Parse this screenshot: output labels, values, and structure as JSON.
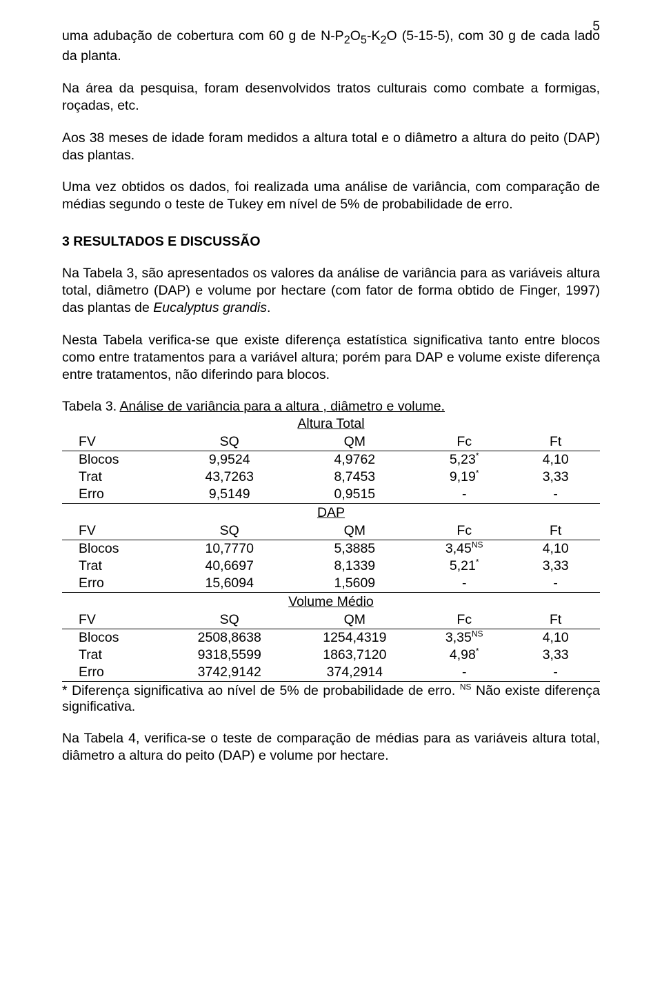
{
  "page_number": "5",
  "paragraphs": {
    "p1a": "uma adubação de cobertura com 60 g de N-P",
    "p1b": "O",
    "p1c": "-K",
    "p1d": "O (5-15-5), com 30 g de cada lado da planta.",
    "sub_2a": "2",
    "sub_5": "5",
    "sub_2b": "2",
    "p2": "Na área da pesquisa, foram desenvolvidos tratos culturais como combate a formigas, roçadas, etc.",
    "p3": "Aos 38 meses de idade foram medidos a altura total e o diâmetro a altura do peito (DAP) das plantas.",
    "p4": "Uma vez obtidos os dados, foi realizada uma análise de variância, com comparação de médias segundo o teste de Tukey em nível de 5% de probabilidade de erro.",
    "heading": "3 RESULTADOS E DISCUSSÃO",
    "p5a": "Na Tabela 3, são apresentados os valores da análise de variância para as variáveis altura total, diâmetro (DAP) e volume por hectare (com fator de forma obtido de Finger, 1997) das plantas de ",
    "p5b": "Eucalyptus grandis",
    "p5c": ".",
    "p6": "Nesta Tabela verifica-se que existe diferença estatística significativa tanto entre blocos como entre tratamentos para a variável altura; porém para DAP e volume existe diferença entre tratamentos, não diferindo  para blocos.",
    "caption_plain": "Tabela 3. ",
    "caption_underline": "Análise de variância para a altura , diâmetro e volume.",
    "p7": "Na Tabela 4, verifica-se o teste de comparação de médias para as variáveis altura total, diâmetro a altura do peito (DAP) e volume por hectare."
  },
  "table": {
    "headers": {
      "fv": "FV",
      "sq": "SQ",
      "qm": "QM",
      "fc": "Fc",
      "ft": "Ft"
    },
    "sections": [
      {
        "title": "Altura Total",
        "rows": [
          {
            "fv": "Blocos",
            "sq": "9,9524",
            "qm": "4,9762",
            "fc": "5,23",
            "fc_sup": "*",
            "ft": "4,10"
          },
          {
            "fv": "Trat",
            "sq": "43,7263",
            "qm": "8,7453",
            "fc": "9,19",
            "fc_sup": "*",
            "ft": "3,33"
          },
          {
            "fv": "Erro",
            "sq": "9,5149",
            "qm": "0,9515",
            "fc": "-",
            "fc_sup": "",
            "ft": "-"
          }
        ]
      },
      {
        "title": "DAP",
        "rows": [
          {
            "fv": "Blocos",
            "sq": "10,7770",
            "qm": "5,3885",
            "fc": "3,45",
            "fc_sup": "NS",
            "ft": "4,10"
          },
          {
            "fv": "Trat",
            "sq": "40,6697",
            "qm": "8,1339",
            "fc": "5,21",
            "fc_sup": "*",
            "ft": "3,33"
          },
          {
            "fv": "Erro",
            "sq": "15,6094",
            "qm": "1,5609",
            "fc": "-",
            "fc_sup": "",
            "ft": "-"
          }
        ]
      },
      {
        "title": "Volume Médio",
        "rows": [
          {
            "fv": "Blocos",
            "sq": "2508,8638",
            "qm": "1254,4319",
            "fc": "3,35",
            "fc_sup": "NS",
            "ft": "4,10"
          },
          {
            "fv": "Trat",
            "sq": "9318,5599",
            "qm": "1863,7120",
            "fc": "4,98",
            "fc_sup": "*",
            "ft": "3,33"
          },
          {
            "fv": "Erro",
            "sq": "3742,9142",
            "qm": "374,2914",
            "fc": "-",
            "fc_sup": "",
            "ft": "-"
          }
        ]
      }
    ]
  },
  "footnote": {
    "a": "* Diferença significativa ao nível de 5% de probabilidade de erro. ",
    "sup": "NS",
    "b": " Não existe diferença significativa."
  }
}
